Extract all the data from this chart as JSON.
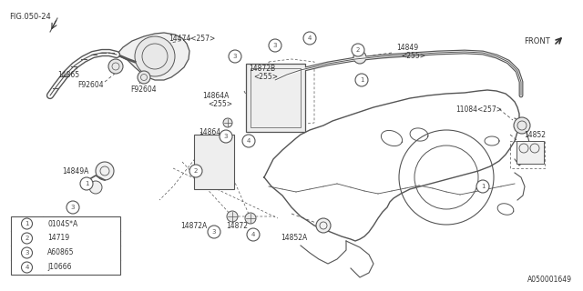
{
  "fig_ref": "FIG.050-24",
  "catalog_num": "A050001649",
  "bg": "#ffffff",
  "lc": "#555555",
  "tc": "#333333",
  "legend_items": [
    {
      "num": "1",
      "code": "0104S*A"
    },
    {
      "num": "2",
      "code": "14719"
    },
    {
      "num": "3",
      "code": "A60865"
    },
    {
      "num": "4",
      "code": "J10666"
    }
  ]
}
